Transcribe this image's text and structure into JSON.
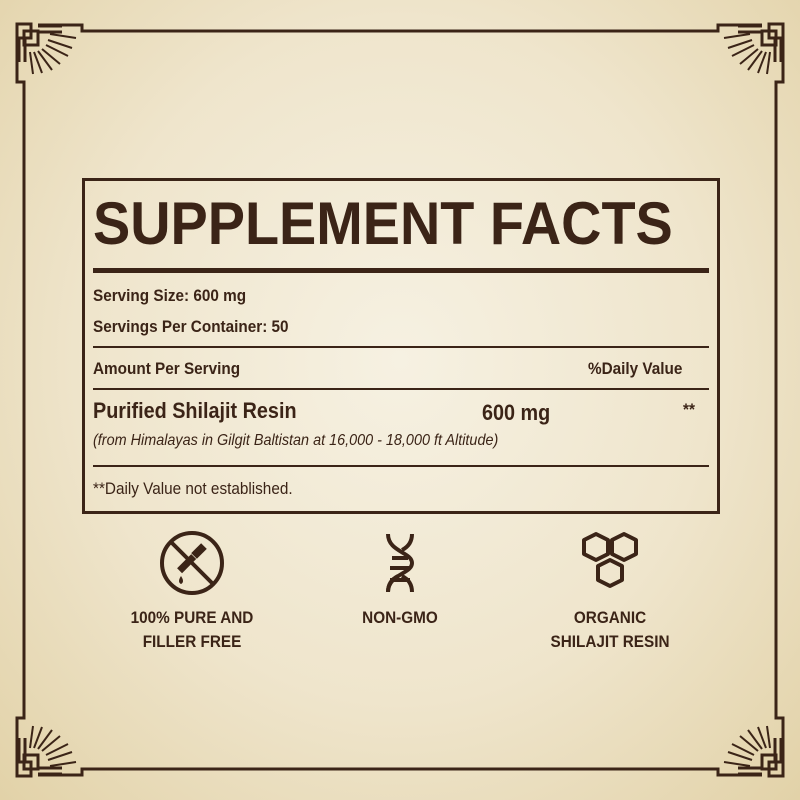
{
  "panel": {
    "title": "SUPPLEMENT FACTS",
    "serving_size": "Serving Size: 600 mg",
    "servings_per_container": "Servings Per Container: 50",
    "amount_per_serving": "Amount Per Serving",
    "daily_value_header": "%Daily Value",
    "ingredient": {
      "name": "Purified Shilajit Resin",
      "amount": "600 mg",
      "daily_value": "**",
      "source": "(from Himalayas in Gilgit Baltistan at 16,000 - 18,000 ft Altitude)"
    },
    "footnote": "**Daily Value not established."
  },
  "features": [
    {
      "icon": "no-dropper-icon",
      "line1": "100% PURE AND",
      "line2": "FILLER FREE"
    },
    {
      "icon": "dna-icon",
      "line1": "NON-GMO",
      "line2": ""
    },
    {
      "icon": "hexagon-cluster-icon",
      "line1": "ORGANIC",
      "line2": "SHILAJIT RESIN"
    }
  ],
  "colors": {
    "ink": "#3b2417",
    "paper": "#efe5cc"
  }
}
